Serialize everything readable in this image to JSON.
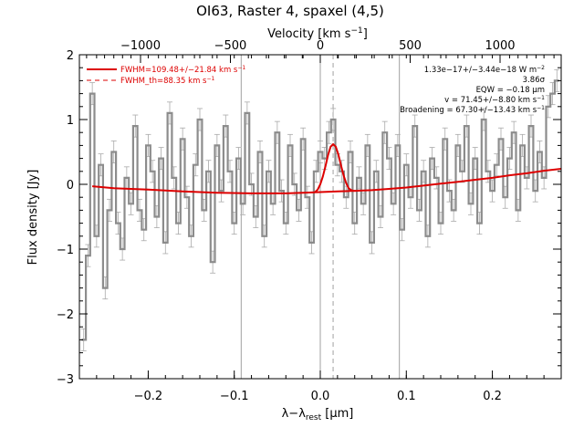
{
  "chart_data": {
    "type": "line",
    "title": "OI63, Raster 4, spaxel (4,5)",
    "xlabel": "λ−λ",
    "xlabel_sub": "rest",
    "xlabel_unit": " [μm]",
    "ylabel": "Flux density [Jy]",
    "top_axis_label": "Velocity [km s",
    "top_axis_label_sup": "−1",
    "top_axis_label_end": "]",
    "xlim": [
      -0.28,
      0.28
    ],
    "ylim": [
      -3.0,
      2.0
    ],
    "top_xlim": [
      -1340,
      1340
    ],
    "x_ticks": [
      -0.2,
      -0.1,
      0.0,
      0.1,
      0.2
    ],
    "x_tick_labels": [
      "−0.2",
      "−0.1",
      "0.0",
      "0.1",
      "0.2"
    ],
    "y_ticks": [
      -3,
      -2,
      -1,
      0,
      1,
      2
    ],
    "y_tick_labels": [
      "−3",
      "−2",
      "−1",
      "0",
      "1",
      "2"
    ],
    "top_ticks": [
      -1000,
      -500,
      0,
      500,
      1000
    ],
    "top_tick_labels": [
      "−1000",
      "−500",
      "0",
      "500",
      "1000"
    ],
    "vertical_lines_solid": [
      -0.092,
      0.0,
      0.092
    ],
    "vertical_line_dashed": 0.0149,
    "legend": {
      "placement": "top-left",
      "entries": [
        {
          "text": "FWHM=109.48+/−21.84 km s",
          "sup": "−1",
          "style": "solid",
          "color": "#dd0000"
        },
        {
          "text": "FWHM_th=88.35 km s",
          "sup": "−1",
          "style": "dashed",
          "color": "#dd0000"
        }
      ]
    },
    "annotations": {
      "placement": "top-right",
      "lines": [
        {
          "text": "1.33e−17+/−3.44e−18 W m",
          "sup": "−2"
        },
        {
          "text": "3.86σ",
          "sup": ""
        },
        {
          "text": "EQW = −0.18 μm",
          "sup": ""
        },
        {
          "text": "v = 71.45+/−8.80 km s",
          "sup": "−1"
        },
        {
          "text": "Broadening = 67.30+/−13.43 km s",
          "sup": "−1"
        }
      ]
    },
    "colors": {
      "data": "#8c8c8c",
      "fit": "#dd0000",
      "errorbar": "#aaaaaa",
      "reference_line": "#888888"
    },
    "series": [
      {
        "role": "data",
        "style": "step",
        "x": [
          -0.275,
          -0.27,
          -0.265,
          -0.26,
          -0.255,
          -0.25,
          -0.245,
          -0.24,
          -0.235,
          -0.23,
          -0.225,
          -0.22,
          -0.215,
          -0.21,
          -0.205,
          -0.2,
          -0.195,
          -0.19,
          -0.185,
          -0.18,
          -0.175,
          -0.17,
          -0.165,
          -0.16,
          -0.155,
          -0.15,
          -0.145,
          -0.14,
          -0.135,
          -0.13,
          -0.125,
          -0.12,
          -0.115,
          -0.11,
          -0.105,
          -0.1,
          -0.095,
          -0.09,
          -0.085,
          -0.08,
          -0.075,
          -0.07,
          -0.065,
          -0.06,
          -0.055,
          -0.05,
          -0.045,
          -0.04,
          -0.035,
          -0.03,
          -0.025,
          -0.02,
          -0.015,
          -0.01,
          -0.005,
          0.0,
          0.005,
          0.01,
          0.015,
          0.02,
          0.025,
          0.03,
          0.035,
          0.04,
          0.045,
          0.05,
          0.055,
          0.06,
          0.065,
          0.07,
          0.075,
          0.08,
          0.085,
          0.09,
          0.095,
          0.1,
          0.105,
          0.11,
          0.115,
          0.12,
          0.125,
          0.13,
          0.135,
          0.14,
          0.145,
          0.15,
          0.155,
          0.16,
          0.165,
          0.17,
          0.175,
          0.18,
          0.185,
          0.19,
          0.195,
          0.2,
          0.205,
          0.21,
          0.215,
          0.22,
          0.225,
          0.23,
          0.235,
          0.24,
          0.245,
          0.25,
          0.255,
          0.26,
          0.265,
          0.27,
          0.275
        ],
        "y": [
          -2.4,
          -1.1,
          1.4,
          -0.8,
          0.3,
          -1.6,
          -0.4,
          0.5,
          -0.6,
          -1.0,
          0.1,
          -0.3,
          0.9,
          -0.4,
          -0.7,
          0.6,
          0.2,
          -0.5,
          0.4,
          -0.9,
          1.1,
          0.1,
          -0.6,
          0.7,
          -0.2,
          -0.8,
          0.3,
          1.0,
          -0.4,
          0.2,
          -1.2,
          0.6,
          -0.1,
          0.9,
          0.2,
          -0.6,
          0.4,
          -0.3,
          1.1,
          0.0,
          -0.5,
          0.5,
          -0.8,
          0.2,
          -0.3,
          0.8,
          -0.1,
          -0.6,
          0.6,
          0.0,
          -0.4,
          0.7,
          -0.2,
          -0.9,
          0.2,
          0.5,
          0.4,
          0.8,
          1.0,
          0.3,
          0.2,
          -0.2,
          0.5,
          -0.6,
          0.1,
          -0.3,
          0.6,
          -0.9,
          0.2,
          -0.5,
          0.8,
          0.4,
          -0.3,
          0.6,
          -0.7,
          0.3,
          -0.2,
          0.9,
          -0.4,
          0.2,
          -0.8,
          0.4,
          0.1,
          -0.6,
          0.7,
          -0.1,
          -0.4,
          0.6,
          0.2,
          0.9,
          -0.3,
          0.4,
          -0.6,
          1.0,
          0.2,
          -0.1,
          0.3,
          0.7,
          -0.2,
          0.4,
          0.8,
          -0.4,
          0.6,
          0.1,
          0.9,
          -0.1,
          0.5,
          0.1,
          1.2,
          1.4,
          1.6
        ],
        "error": 0.17
      },
      {
        "role": "continuum",
        "style": "line",
        "x": [
          -0.265,
          -0.24,
          -0.2,
          -0.16,
          -0.12,
          -0.08,
          -0.06,
          -0.04,
          -0.02,
          0.0,
          0.02,
          0.04,
          0.06,
          0.08,
          0.1,
          0.12,
          0.14,
          0.16,
          0.18,
          0.2,
          0.22,
          0.24,
          0.26,
          0.28
        ],
        "y": [
          -0.03,
          -0.06,
          -0.08,
          -0.11,
          -0.13,
          -0.14,
          -0.14,
          -0.14,
          -0.13,
          -0.12,
          -0.11,
          -0.1,
          -0.09,
          -0.07,
          -0.05,
          -0.02,
          0.01,
          0.04,
          0.07,
          0.1,
          0.14,
          0.17,
          0.21,
          0.24
        ]
      },
      {
        "role": "line_fit",
        "style": "line",
        "x": [
          -0.006,
          -0.003,
          0.0,
          0.003,
          0.006,
          0.009,
          0.012,
          0.015,
          0.018,
          0.021,
          0.024,
          0.027,
          0.03,
          0.033,
          0.036,
          0.039,
          0.042
        ],
        "y": [
          -0.12,
          -0.08,
          0.0,
          0.12,
          0.28,
          0.45,
          0.58,
          0.62,
          0.58,
          0.46,
          0.3,
          0.14,
          0.02,
          -0.06,
          -0.09,
          -0.1,
          -0.1
        ]
      }
    ]
  }
}
